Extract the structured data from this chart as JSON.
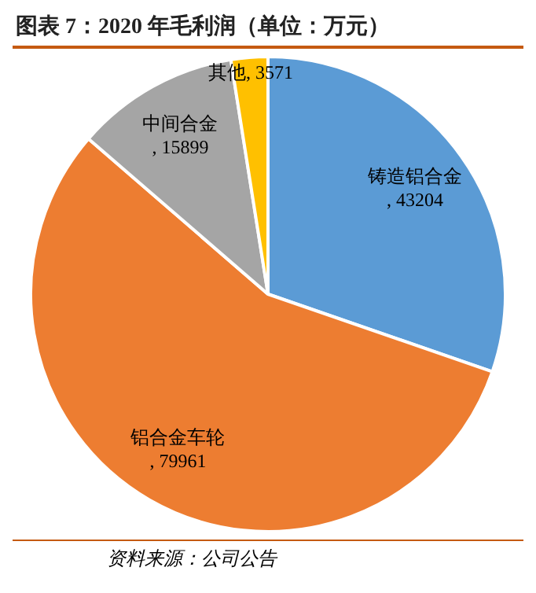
{
  "chart_data": {
    "type": "pie",
    "title": "图表 7：2020 年毛利润（单位：万元）",
    "categories": [
      "铸造铝合金",
      "铝合金车轮",
      "中间合金",
      "其他"
    ],
    "values": [
      43204,
      79961,
      15899,
      3571
    ],
    "colors": [
      "#5b9bd5",
      "#ed7d31",
      "#a5a5a5",
      "#ffc000"
    ],
    "value_labels": [
      ", 43204",
      ", 79961",
      ", 15899",
      ", 3571"
    ],
    "legend": false,
    "annotations": [
      "资料来源：公司公告"
    ]
  }
}
